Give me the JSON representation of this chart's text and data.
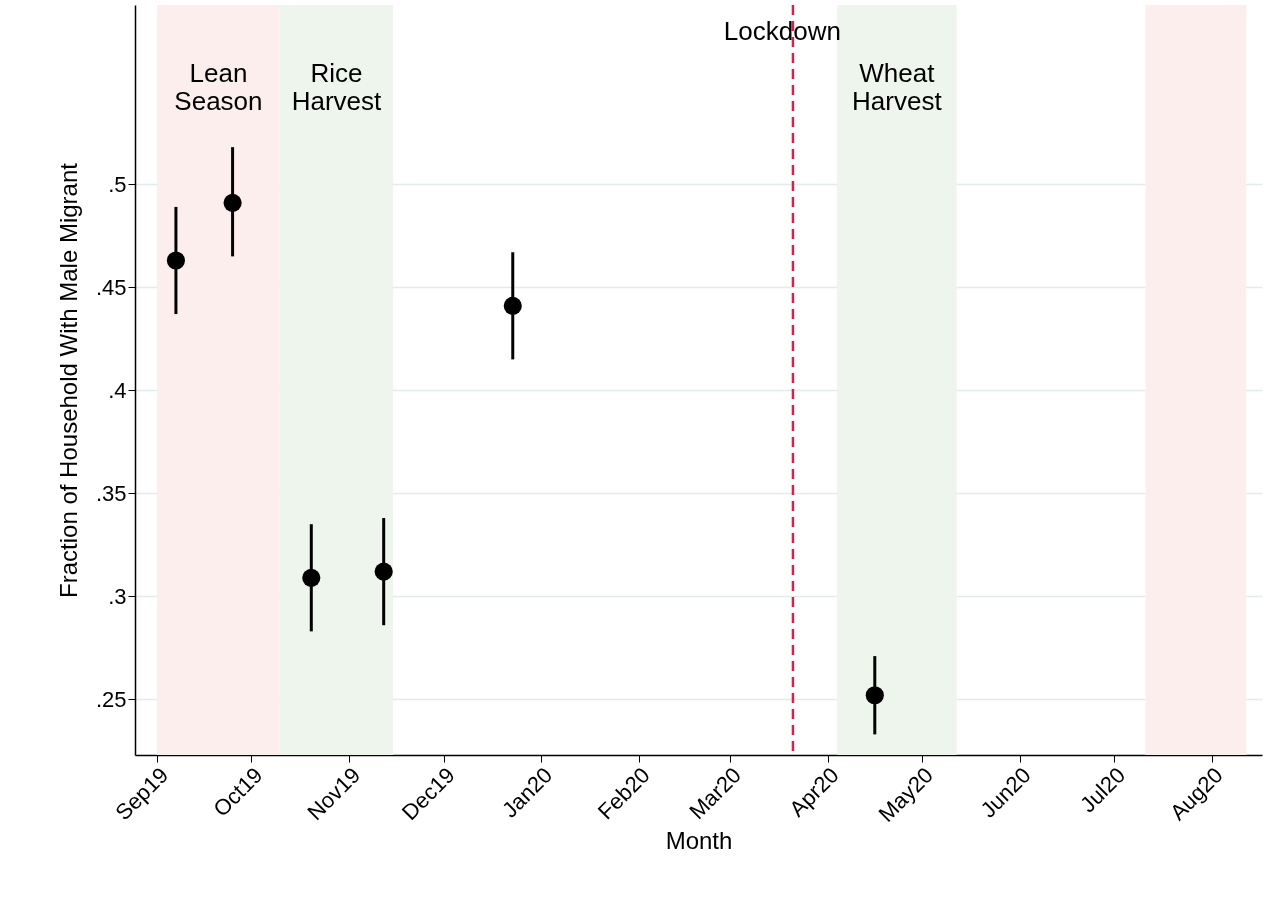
{
  "chart_data": {
    "type": "scatter",
    "xlabel": "Month",
    "ylabel": "Fraction of Household With Male Migrant",
    "series": [
      {
        "x": [
          "2019-09-07",
          "2019-09-25",
          "2019-10-20",
          "2019-11-12",
          "2019-12-23",
          "2020-04-16"
        ],
        "values": [
          0.463,
          0.491,
          0.309,
          0.312,
          0.441,
          0.252
        ],
        "errors": [
          [
            0.437,
            0.489
          ],
          [
            0.465,
            0.518
          ],
          [
            0.283,
            0.335
          ],
          [
            0.286,
            0.338
          ],
          [
            0.415,
            0.467
          ],
          [
            0.233,
            0.271
          ]
        ],
        "color": "#000000"
      }
    ],
    "marker": "circle",
    "xlim": [
      "2019-08-25",
      "2020-08-17"
    ],
    "xticks": [
      {
        "value": "2019-09-01",
        "label": "Sep19"
      },
      {
        "value": "2019-10-01",
        "label": "Oct19"
      },
      {
        "value": "2019-11-01",
        "label": "Nov19"
      },
      {
        "value": "2019-12-01",
        "label": "Dec19"
      },
      {
        "value": "2020-01-01",
        "label": "Jan20"
      },
      {
        "value": "2020-02-01",
        "label": "Feb20"
      },
      {
        "value": "2020-03-01",
        "label": "Mar20"
      },
      {
        "value": "2020-04-01",
        "label": "Apr20"
      },
      {
        "value": "2020-05-01",
        "label": "May20"
      },
      {
        "value": "2020-06-01",
        "label": "Jun20"
      },
      {
        "value": "2020-07-01",
        "label": "Jul20"
      },
      {
        "value": "2020-08-01",
        "label": "Aug20"
      }
    ],
    "ylim": [
      0.223,
      0.587
    ],
    "yticks": [
      {
        "value": 0.25,
        "label": ".25"
      },
      {
        "value": 0.3,
        "label": ".3"
      },
      {
        "value": 0.35,
        "label": ".35"
      },
      {
        "value": 0.4,
        "label": ".4"
      },
      {
        "value": 0.45,
        "label": ".45"
      },
      {
        "value": 0.5,
        "label": ".5"
      }
    ],
    "grid": "y",
    "ref_lines": [
      {
        "axis": "x",
        "value": "2020-03-21",
        "label": "Lockdown",
        "color": "#d6204e",
        "line_style": "dashed"
      }
    ],
    "bands": [
      {
        "axis": "x",
        "from": "2019-09-01",
        "to": "2019-10-10",
        "label": "Lean Season",
        "color": "#fdeeee"
      },
      {
        "axis": "x",
        "from": "2019-10-10",
        "to": "2019-11-15",
        "label": "Rice Harvest",
        "color": "#eef5ec"
      },
      {
        "axis": "x",
        "from": "2020-04-04",
        "to": "2020-05-12",
        "label": "Wheat Harvest",
        "color": "#eef5ec"
      },
      {
        "axis": "x",
        "from": "2020-07-11",
        "to": "2020-08-12",
        "color": "#fdeeee"
      }
    ]
  }
}
